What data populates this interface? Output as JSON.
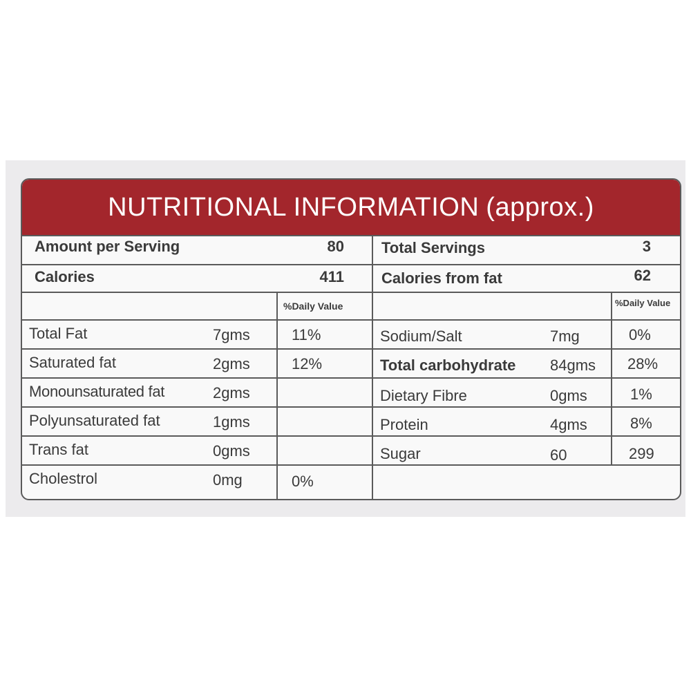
{
  "header": {
    "title": "NUTRITIONAL INFORMATION",
    "subtitle": "(approx.)"
  },
  "summary": {
    "amount_per_serving_label": "Amount per Serving",
    "amount_per_serving_value": "80",
    "total_servings_label": "Total Servings",
    "total_servings_value": "3",
    "calories_label": "Calories",
    "calories_value": "411",
    "calories_from_fat_label": "Calories from fat",
    "calories_from_fat_value": "62"
  },
  "dv_header": "%Daily Value",
  "dv_header_right": "%Daily Value",
  "left_rows": [
    {
      "name": "Total Fat",
      "amount": "7gms",
      "dv": "11%"
    },
    {
      "name": "Saturated fat",
      "amount": "2gms",
      "dv": "12%"
    },
    {
      "name": "Monounsaturated fat",
      "amount": "2gms",
      "dv": ""
    },
    {
      "name": "Polyunsaturated fat",
      "amount": "1gms",
      "dv": ""
    },
    {
      "name": "Trans fat",
      "amount": "0gms",
      "dv": ""
    },
    {
      "name": "Cholestrol",
      "amount": "0mg",
      "dv": "0%"
    }
  ],
  "right_rows": [
    {
      "name": "Sodium/Salt",
      "amount": "7mg",
      "dv": "0%"
    },
    {
      "name": "Total carbohydrate",
      "amount": "84gms",
      "dv": "28%"
    },
    {
      "name": "Dietary Fibre",
      "amount": "0gms",
      "dv": "1%"
    },
    {
      "name": "Protein",
      "amount": "4gms",
      "dv": "8%"
    },
    {
      "name": "Sugar",
      "amount": "60",
      "dv": "299"
    }
  ]
}
